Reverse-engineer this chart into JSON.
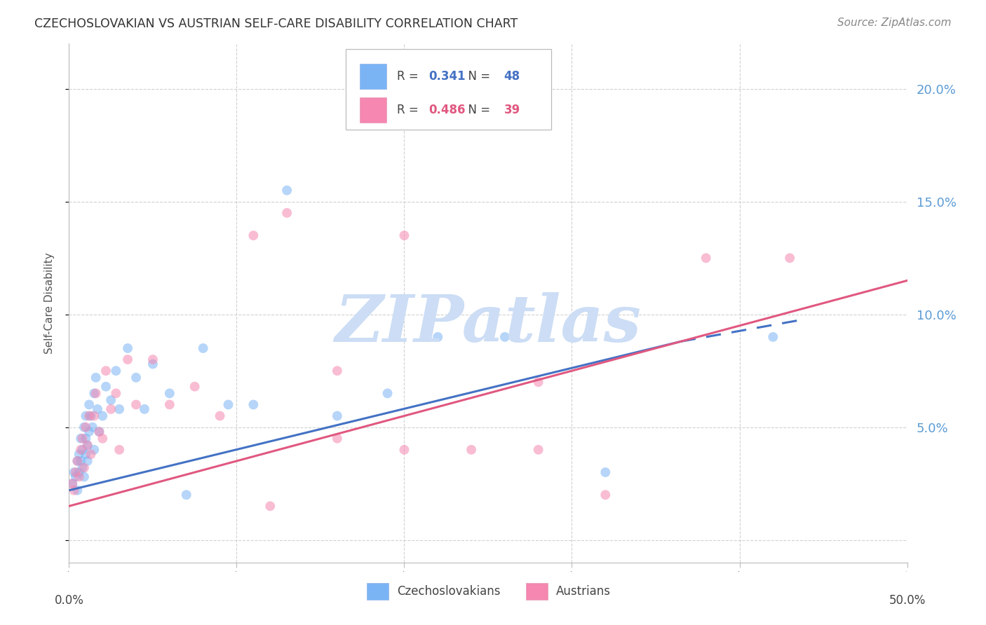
{
  "title": "CZECHOSLOVAKIAN VS AUSTRIAN SELF-CARE DISABILITY CORRELATION CHART",
  "source": "Source: ZipAtlas.com",
  "ylabel": "Self-Care Disability",
  "xlim": [
    0.0,
    0.5
  ],
  "ylim": [
    -0.01,
    0.22
  ],
  "yticks": [
    0.0,
    0.05,
    0.1,
    0.15,
    0.2
  ],
  "ytick_labels": [
    "",
    "5.0%",
    "10.0%",
    "15.0%",
    "20.0%"
  ],
  "xticks": [
    0.0,
    0.1,
    0.2,
    0.3,
    0.4,
    0.5
  ],
  "xtick_labels": [
    "0.0%",
    "",
    "",
    "",
    "",
    "50.0%"
  ],
  "czech_R": 0.341,
  "czech_N": 48,
  "austrian_R": 0.486,
  "austrian_N": 39,
  "czech_color": "#7ab4f5",
  "austrian_color": "#f587b0",
  "czech_line_color": "#4472c4",
  "austrian_line_color": "#e05880",
  "background_color": "#ffffff",
  "grid_color": "#cccccc",
  "axis_color": "#bbbbbb",
  "title_color": "#333333",
  "source_color": "#888888",
  "right_tick_color": "#5b9bd5",
  "czech_scatter_x": [
    0.002,
    0.003,
    0.004,
    0.005,
    0.005,
    0.006,
    0.006,
    0.007,
    0.007,
    0.008,
    0.008,
    0.009,
    0.009,
    0.01,
    0.01,
    0.01,
    0.011,
    0.011,
    0.012,
    0.012,
    0.013,
    0.014,
    0.015,
    0.015,
    0.016,
    0.017,
    0.018,
    0.02,
    0.022,
    0.025,
    0.028,
    0.03,
    0.035,
    0.04,
    0.045,
    0.05,
    0.06,
    0.07,
    0.08,
    0.095,
    0.11,
    0.13,
    0.16,
    0.19,
    0.22,
    0.26,
    0.32,
    0.42
  ],
  "czech_scatter_y": [
    0.025,
    0.03,
    0.028,
    0.022,
    0.035,
    0.03,
    0.038,
    0.035,
    0.045,
    0.032,
    0.04,
    0.028,
    0.05,
    0.038,
    0.045,
    0.055,
    0.042,
    0.035,
    0.06,
    0.048,
    0.055,
    0.05,
    0.065,
    0.04,
    0.072,
    0.058,
    0.048,
    0.055,
    0.068,
    0.062,
    0.075,
    0.058,
    0.085,
    0.072,
    0.058,
    0.078,
    0.065,
    0.02,
    0.085,
    0.06,
    0.06,
    0.155,
    0.055,
    0.065,
    0.09,
    0.09,
    0.03,
    0.09
  ],
  "austrian_scatter_x": [
    0.002,
    0.003,
    0.004,
    0.005,
    0.006,
    0.007,
    0.008,
    0.009,
    0.01,
    0.011,
    0.012,
    0.013,
    0.015,
    0.016,
    0.018,
    0.02,
    0.022,
    0.025,
    0.028,
    0.03,
    0.035,
    0.04,
    0.05,
    0.06,
    0.075,
    0.09,
    0.11,
    0.13,
    0.16,
    0.2,
    0.24,
    0.28,
    0.32,
    0.38,
    0.43,
    0.2,
    0.16,
    0.12,
    0.28
  ],
  "austrian_scatter_y": [
    0.025,
    0.022,
    0.03,
    0.035,
    0.028,
    0.04,
    0.045,
    0.032,
    0.05,
    0.042,
    0.055,
    0.038,
    0.055,
    0.065,
    0.048,
    0.045,
    0.075,
    0.058,
    0.065,
    0.04,
    0.08,
    0.06,
    0.08,
    0.06,
    0.068,
    0.055,
    0.135,
    0.145,
    0.075,
    0.04,
    0.04,
    0.04,
    0.02,
    0.125,
    0.125,
    0.135,
    0.045,
    0.015,
    0.07
  ],
  "czech_line_x_start": 0.0,
  "czech_line_x_solid_end": 0.365,
  "czech_line_x_end": 0.44,
  "czech_line_y_start": 0.022,
  "czech_line_y_solid_end": 0.088,
  "czech_line_y_end": 0.098,
  "austrian_line_x_start": 0.0,
  "austrian_line_x_end": 0.5,
  "austrian_line_y_start": 0.015,
  "austrian_line_y_end": 0.115,
  "watermark_text": "ZIPatlas",
  "watermark_color": "#ccddf5",
  "marker_size": 100,
  "marker_alpha": 0.55
}
